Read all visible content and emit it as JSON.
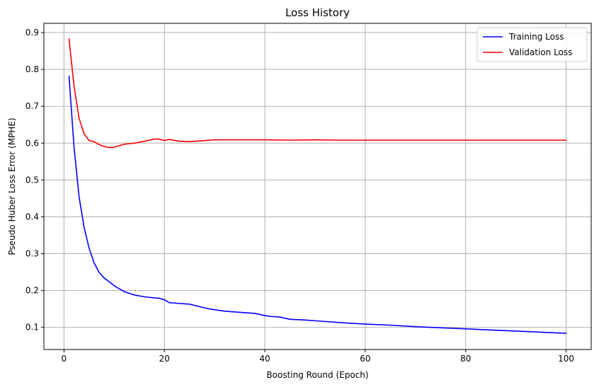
{
  "chart_data": {
    "type": "line",
    "title": "Loss History",
    "xlabel": "Boosting Round (Epoch)",
    "ylabel": "Pseudo Huber Loss Error (MPHE)",
    "xlim": [
      -4,
      105
    ],
    "ylim": [
      0.04,
      0.925
    ],
    "xticks": [
      0,
      20,
      40,
      60,
      80,
      100
    ],
    "yticks": [
      0.1,
      0.2,
      0.3,
      0.4,
      0.5,
      0.6,
      0.7,
      0.8,
      0.9
    ],
    "grid": true,
    "legend_position": "top-right",
    "series": [
      {
        "name": "Training Loss",
        "color": "#0000ff",
        "x": [
          1,
          2,
          3,
          4,
          5,
          6,
          7,
          8,
          9,
          10,
          12,
          14,
          16,
          18,
          19,
          20,
          21,
          25,
          28,
          29,
          32,
          36,
          38,
          40,
          41,
          43,
          45,
          48,
          50,
          55,
          60,
          65,
          70,
          75,
          80,
          85,
          90,
          95,
          100
        ],
        "y": [
          0.782,
          0.59,
          0.455,
          0.372,
          0.315,
          0.275,
          0.249,
          0.234,
          0.224,
          0.213,
          0.197,
          0.188,
          0.183,
          0.18,
          0.179,
          0.175,
          0.167,
          0.163,
          0.153,
          0.15,
          0.144,
          0.14,
          0.138,
          0.132,
          0.13,
          0.128,
          0.122,
          0.12,
          0.118,
          0.113,
          0.109,
          0.106,
          0.102,
          0.099,
          0.096,
          0.093,
          0.09,
          0.087,
          0.084
        ]
      },
      {
        "name": "Validation Loss",
        "color": "#ff0000",
        "x": [
          1,
          2,
          3,
          4,
          5,
          6,
          7,
          8,
          9,
          10,
          12,
          14,
          16,
          18,
          19,
          20,
          21,
          23,
          25,
          28,
          30,
          35,
          40,
          45,
          50,
          55,
          60,
          65,
          70,
          75,
          80,
          85,
          90,
          95,
          100
        ],
        "y": [
          0.883,
          0.755,
          0.668,
          0.625,
          0.607,
          0.604,
          0.596,
          0.591,
          0.588,
          0.589,
          0.597,
          0.6,
          0.605,
          0.611,
          0.611,
          0.607,
          0.61,
          0.605,
          0.604,
          0.607,
          0.609,
          0.609,
          0.609,
          0.608,
          0.609,
          0.608,
          0.608,
          0.608,
          0.608,
          0.608,
          0.608,
          0.608,
          0.608,
          0.608,
          0.608
        ]
      }
    ]
  }
}
